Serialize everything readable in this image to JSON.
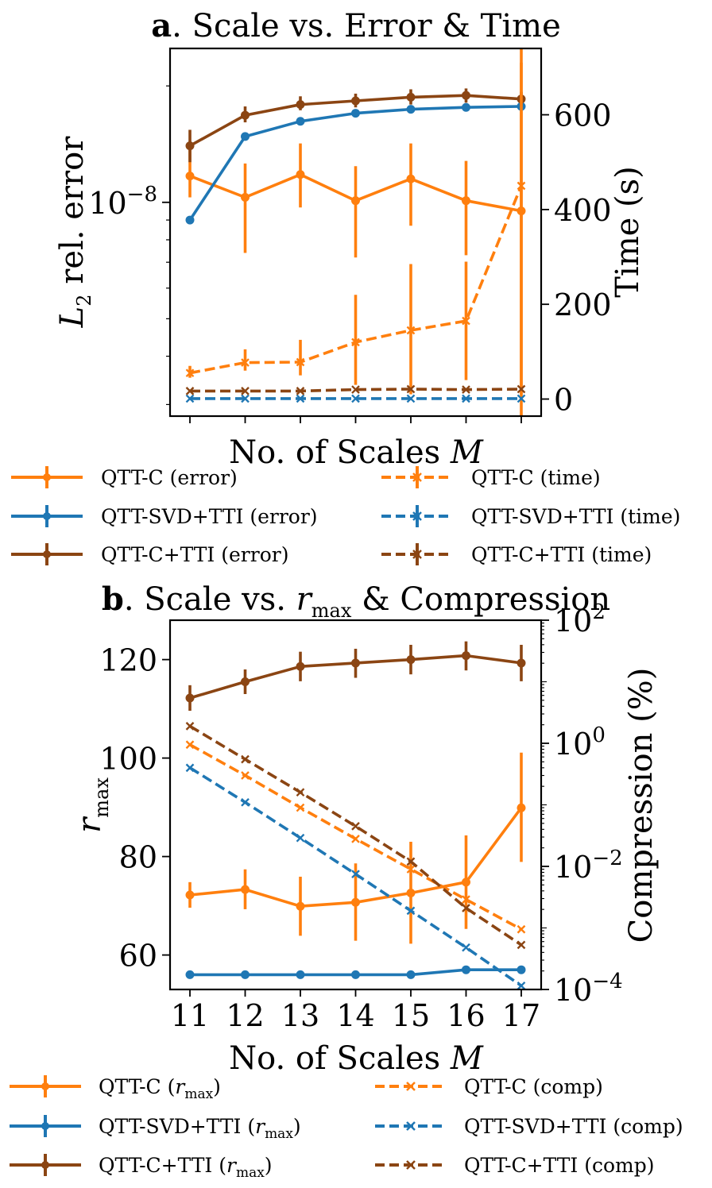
{
  "colors": {
    "orange": "#ff7f0e",
    "blue": "#1f77b4",
    "brown": "#8b4513"
  },
  "chart_data": [
    {
      "type": "line",
      "title_bold": "a",
      "title_rest": ". Scale vs. Error & Time",
      "xlabel": "No. of Scales M",
      "ylabel_main": "L",
      "ylabel_sub": "2",
      "ylabel_rest": " rel. error",
      "y2label": "Time (s)",
      "x": [
        11,
        12,
        13,
        14,
        15,
        16,
        17
      ],
      "yscale": "log",
      "ylim": [
        2.8e-09,
        2.5e-08
      ],
      "y_ticks": [
        {
          "value": 1e-08,
          "base": "10",
          "exp": "−8"
        }
      ],
      "y2lim": [
        -36,
        740
      ],
      "y2_ticks": [
        0,
        200,
        400,
        600
      ],
      "series": [
        {
          "name": "QTT-C (error)",
          "axis": "left",
          "color": "orange",
          "style": "solid",
          "marker": "dot",
          "values": [
            1.17e-08,
            1.03e-08,
            1.18e-08,
            1.01e-08,
            1.15e-08,
            1.01e-08,
            9.5e-09
          ],
          "err_low": [
            1.03e-08,
            7.4e-09,
            9.7e-09,
            7.2e-09,
            8.7e-09,
            7.3e-09,
            2.8e-09
          ],
          "err_high": [
            1.38e-08,
            1.26e-08,
            1.42e-08,
            1.24e-08,
            1.42e-08,
            1.28e-08,
            2.5e-08
          ]
        },
        {
          "name": "QTT-SVD+TTI (error)",
          "axis": "left",
          "color": "blue",
          "style": "solid",
          "marker": "dot",
          "values": [
            9e-09,
            1.48e-08,
            1.62e-08,
            1.7e-08,
            1.74e-08,
            1.76e-08,
            1.77e-08
          ]
        },
        {
          "name": "QTT-C+TTI (error)",
          "axis": "left",
          "color": "brown",
          "style": "solid",
          "marker": "dot",
          "values": [
            1.4e-08,
            1.68e-08,
            1.79e-08,
            1.83e-08,
            1.87e-08,
            1.89e-08,
            1.85e-08
          ],
          "err_low": [
            1.27e-08,
            1.61e-08,
            1.73e-08,
            1.76e-08,
            1.79e-08,
            1.81e-08,
            1.77e-08
          ],
          "err_high": [
            1.54e-08,
            1.77e-08,
            1.88e-08,
            1.91e-08,
            1.96e-08,
            1.97e-08,
            1.93e-08
          ]
        },
        {
          "name": "QTT-C (time)",
          "axis": "right",
          "color": "orange",
          "style": "dashed",
          "marker": "x",
          "values": [
            55,
            77,
            78,
            120,
            145,
            165,
            450
          ],
          "err_low": [
            45,
            60,
            50,
            30,
            10,
            40,
            10
          ],
          "err_high": [
            70,
            105,
            125,
            220,
            285,
            290,
            710
          ]
        },
        {
          "name": "QTT-SVD+TTI (time)",
          "axis": "right",
          "color": "blue",
          "style": "dashed",
          "marker": "x",
          "values": [
            1,
            1,
            1,
            1,
            1,
            1,
            1
          ]
        },
        {
          "name": "QTT-C+TTI (time)",
          "axis": "right",
          "color": "brown",
          "style": "dashed",
          "marker": "x",
          "values": [
            17,
            17,
            17,
            20,
            21,
            20,
            21
          ]
        }
      ]
    },
    {
      "type": "line",
      "title_bold": "b",
      "title_pre": ". Scale vs. ",
      "title_var": "r",
      "title_sub": "max",
      "title_post": " & Compression",
      "xlabel": "No. of Scales M",
      "ylabel_main": "r",
      "ylabel_sub": "max",
      "y2label": "Compression (%)",
      "x": [
        11,
        12,
        13,
        14,
        15,
        16,
        17
      ],
      "x_ticks": [
        "11",
        "12",
        "13",
        "14",
        "15",
        "16",
        "17"
      ],
      "ylim": [
        53,
        128
      ],
      "y_ticks": [
        60,
        80,
        100,
        120
      ],
      "y2scale": "log",
      "y2lim": [
        0.0001,
        100
      ],
      "y2_ticks": [
        {
          "value": 0.0001,
          "base": "10",
          "exp": "−4"
        },
        {
          "value": 0.01,
          "base": "10",
          "exp": "−2"
        },
        {
          "value": 1,
          "base": "10",
          "exp": "0"
        },
        {
          "value": 100,
          "base": "10",
          "exp": "2"
        }
      ],
      "series": [
        {
          "name": "QTT-C (rmax)",
          "axis": "left",
          "color": "orange",
          "style": "solid",
          "marker": "dot",
          "values": [
            72.2,
            73.3,
            69.9,
            70.7,
            72.6,
            74.8,
            89.9
          ],
          "err_low": [
            69.6,
            69.3,
            63.9,
            62.9,
            62.3,
            65.3,
            78.9
          ],
          "err_high": [
            74.8,
            77.4,
            75.9,
            78.6,
            83.0,
            84.3,
            101.1
          ]
        },
        {
          "name": "QTT-SVD+TTI (rmax)",
          "axis": "left",
          "color": "blue",
          "style": "solid",
          "marker": "dot",
          "values": [
            56,
            56,
            56,
            56,
            56,
            57,
            57
          ]
        },
        {
          "name": "QTT-C+TTI (rmax)",
          "axis": "left",
          "color": "brown",
          "style": "solid",
          "marker": "dot",
          "values": [
            112.2,
            115.5,
            118.6,
            119.3,
            120.0,
            120.8,
            119.3
          ],
          "err_low": [
            109.6,
            113.0,
            115.6,
            116.3,
            117.0,
            117.8,
            115.6
          ],
          "err_high": [
            114.8,
            118.0,
            121.6,
            122.2,
            123.0,
            123.7,
            123.0
          ]
        },
        {
          "name": "QTT-C (comp)",
          "axis": "right",
          "color": "orange",
          "style": "dashed",
          "marker": "x",
          "values": [
            0.95,
            0.3,
            0.09,
            0.028,
            0.009,
            0.0029,
            0.00095
          ]
        },
        {
          "name": "QTT-SVD+TTI (comp)",
          "axis": "right",
          "color": "blue",
          "style": "dashed",
          "marker": "x",
          "values": [
            0.4,
            0.11,
            0.029,
            0.0075,
            0.0019,
            0.00048,
            0.000115
          ]
        },
        {
          "name": "QTT-C+TTI (comp)",
          "axis": "right",
          "color": "brown",
          "style": "dashed",
          "marker": "x",
          "values": [
            1.9,
            0.55,
            0.16,
            0.045,
            0.012,
            0.0021,
            0.00053
          ]
        }
      ]
    }
  ],
  "legend_a": {
    "left": [
      "QTT-C (error)",
      "QTT-SVD+TTI (error)",
      "QTT-C+TTI (error)"
    ],
    "right": [
      "QTT-C (time)",
      "QTT-SVD+TTI (time)",
      "QTT-C+TTI (time)"
    ]
  },
  "legend_b": {
    "left_pre": [
      "QTT-C (",
      "QTT-SVD+TTI (",
      "QTT-C+TTI ("
    ],
    "left_var": "r",
    "left_sub": "max",
    "left_post": ")",
    "right": [
      "QTT-C (comp)",
      "QTT-SVD+TTI (comp)",
      "QTT-C+TTI (comp)"
    ]
  }
}
